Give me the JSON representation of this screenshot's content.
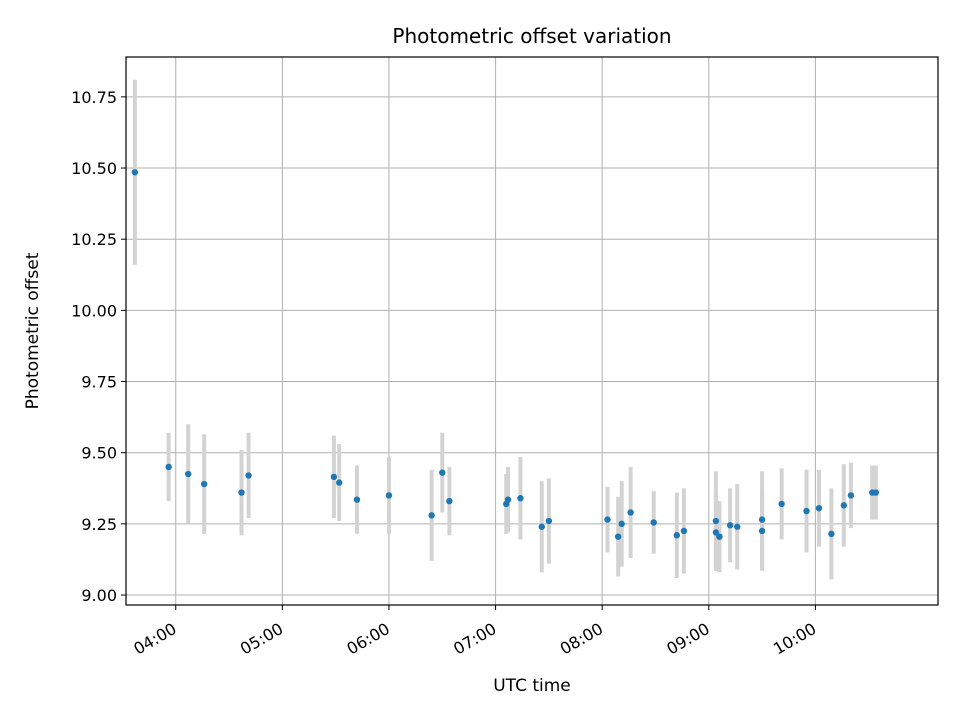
{
  "chart_data": {
    "type": "scatter",
    "title": "Photometric offset variation",
    "xlabel": "UTC time",
    "ylabel": "Photometric offset",
    "x_tick_labels": [
      "04:00",
      "05:00",
      "06:00",
      "07:00",
      "08:00",
      "09:00",
      "10:00"
    ],
    "y_tick_labels": [
      "9.00",
      "9.25",
      "9.50",
      "9.75",
      "10.00",
      "10.25",
      "10.50",
      "10.75"
    ],
    "xlim": [
      "03:32",
      "11:09"
    ],
    "ylim": [
      8.965,
      10.89
    ],
    "grid": true,
    "colors": {
      "point": "#1f77b4",
      "errorbar": "#d3d3d3",
      "grid": "#b0b0b0"
    },
    "points": [
      {
        "time": "03:37",
        "y": 10.485,
        "err": 0.325
      },
      {
        "time": "03:56",
        "y": 9.45,
        "err": 0.12
      },
      {
        "time": "04:07",
        "y": 9.425,
        "err": 0.175
      },
      {
        "time": "04:16",
        "y": 9.39,
        "err": 0.175
      },
      {
        "time": "04:37",
        "y": 9.36,
        "err": 0.15
      },
      {
        "time": "04:41",
        "y": 9.42,
        "err": 0.15
      },
      {
        "time": "05:29",
        "y": 9.415,
        "err": 0.145
      },
      {
        "time": "05:32",
        "y": 9.395,
        "err": 0.135
      },
      {
        "time": "05:42",
        "y": 9.335,
        "err": 0.12
      },
      {
        "time": "06:00",
        "y": 9.35,
        "err": 0.135
      },
      {
        "time": "06:24",
        "y": 9.28,
        "err": 0.16
      },
      {
        "time": "06:30",
        "y": 9.43,
        "err": 0.14
      },
      {
        "time": "06:34",
        "y": 9.33,
        "err": 0.12
      },
      {
        "time": "07:06",
        "y": 9.32,
        "err": 0.105
      },
      {
        "time": "07:07",
        "y": 9.335,
        "err": 0.115
      },
      {
        "time": "07:14",
        "y": 9.34,
        "err": 0.145
      },
      {
        "time": "07:26",
        "y": 9.24,
        "err": 0.16
      },
      {
        "time": "07:30",
        "y": 9.26,
        "err": 0.15
      },
      {
        "time": "08:03",
        "y": 9.265,
        "err": 0.115
      },
      {
        "time": "08:09",
        "y": 9.205,
        "err": 0.14
      },
      {
        "time": "08:11",
        "y": 9.25,
        "err": 0.15
      },
      {
        "time": "08:16",
        "y": 9.29,
        "err": 0.16
      },
      {
        "time": "08:29",
        "y": 9.255,
        "err": 0.11
      },
      {
        "time": "08:42",
        "y": 9.21,
        "err": 0.15
      },
      {
        "time": "08:46",
        "y": 9.225,
        "err": 0.15
      },
      {
        "time": "09:04",
        "y": 9.26,
        "err": 0.175
      },
      {
        "time": "09:04",
        "y": 9.22,
        "err": 0.135
      },
      {
        "time": "09:06",
        "y": 9.205,
        "err": 0.125
      },
      {
        "time": "09:12",
        "y": 9.245,
        "err": 0.13
      },
      {
        "time": "09:16",
        "y": 9.24,
        "err": 0.15
      },
      {
        "time": "09:30",
        "y": 9.265,
        "err": 0.17
      },
      {
        "time": "09:30",
        "y": 9.225,
        "err": 0.14
      },
      {
        "time": "09:41",
        "y": 9.32,
        "err": 0.125
      },
      {
        "time": "09:55",
        "y": 9.295,
        "err": 0.145
      },
      {
        "time": "10:02",
        "y": 9.305,
        "err": 0.135
      },
      {
        "time": "10:09",
        "y": 9.215,
        "err": 0.16
      },
      {
        "time": "10:16",
        "y": 9.315,
        "err": 0.145
      },
      {
        "time": "10:20",
        "y": 9.35,
        "err": 0.115
      },
      {
        "time": "10:32",
        "y": 9.36,
        "err": 0.095
      },
      {
        "time": "10:34",
        "y": 9.36,
        "err": 0.095
      }
    ]
  }
}
